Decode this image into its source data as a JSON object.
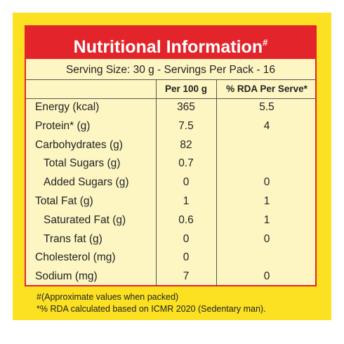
{
  "header": {
    "title": "Nutritional Information",
    "mark": "#"
  },
  "serving": "Serving Size: 30 g - Servings Per Pack - 16",
  "table": {
    "columns": [
      "Per 100 g",
      "% RDA Per Serve*"
    ],
    "rows": [
      [
        "Energy (kcal)",
        "365",
        "5.5"
      ],
      [
        "Protein* (g)",
        "7.5",
        "4"
      ],
      [
        "Carbohydrates (g)",
        "82",
        null
      ],
      [
        "Total Sugars (g)",
        "0.7",
        null
      ],
      [
        "Added Sugars (g)",
        "0",
        "0"
      ],
      [
        "Total Fat (g)",
        "1",
        "1"
      ],
      [
        "Saturated Fat (g)",
        "0.6",
        "1"
      ],
      [
        "Trans fat (g)",
        "0",
        "0"
      ],
      [
        "Cholesterol (mg)",
        "0",
        null
      ],
      [
        "Sodium (mg)",
        "7",
        "0"
      ]
    ]
  },
  "footnotes": [
    "#(Approximate values when packed)",
    "*% RDA calculated based on ICMR 2020 (Sedentary man)."
  ]
}
